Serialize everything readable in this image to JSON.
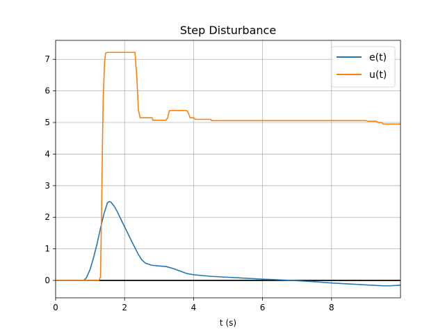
{
  "chart_data": {
    "type": "line",
    "title": "Step Disturbance",
    "xlabel": "t (s)",
    "ylabel": "",
    "xlim": [
      0,
      10
    ],
    "ylim": [
      -0.55,
      7.6
    ],
    "xticks": [
      0,
      2,
      4,
      6,
      8
    ],
    "yticks": [
      0,
      1,
      2,
      3,
      4,
      5,
      6,
      7
    ],
    "grid": true,
    "legend_position": "top-right",
    "zero_line": {
      "y": 0,
      "color": "#000000"
    },
    "series": [
      {
        "name": "e(t)",
        "color": "#1f77b4",
        "x": [
          0,
          0.8,
          0.85,
          0.9,
          1.0,
          1.1,
          1.2,
          1.3,
          1.4,
          1.5,
          1.55,
          1.6,
          1.7,
          1.8,
          1.9,
          2.0,
          2.2,
          2.4,
          2.5,
          2.6,
          2.7,
          2.8,
          3.0,
          3.2,
          3.4,
          3.6,
          3.8,
          4.0,
          4.5,
          5.0,
          5.5,
          6.0,
          6.5,
          7.0,
          7.5,
          8.0,
          8.5,
          9.0,
          9.5,
          9.7,
          10.0
        ],
        "y": [
          0,
          0,
          0.03,
          0.1,
          0.35,
          0.72,
          1.15,
          1.65,
          2.1,
          2.45,
          2.5,
          2.48,
          2.35,
          2.15,
          1.92,
          1.7,
          1.25,
          0.82,
          0.65,
          0.55,
          0.51,
          0.48,
          0.46,
          0.44,
          0.38,
          0.3,
          0.22,
          0.18,
          0.13,
          0.1,
          0.07,
          0.04,
          0.02,
          -0.01,
          -0.04,
          -0.08,
          -0.11,
          -0.14,
          -0.17,
          -0.17,
          -0.15
        ]
      },
      {
        "name": "u(t)",
        "color": "#ff7f0e",
        "x": [
          0,
          1.25,
          1.3,
          1.33,
          1.36,
          1.38,
          1.42,
          1.45,
          1.5,
          2.3,
          2.35,
          2.4,
          2.45,
          2.5,
          2.8,
          2.82,
          3.2,
          3.25,
          3.3,
          3.8,
          3.85,
          3.9,
          4.0,
          4.05,
          4.5,
          4.52,
          9.0,
          9.05,
          9.3,
          9.35,
          9.45,
          9.5,
          10.0
        ],
        "y": [
          0,
          0,
          0.1,
          2.0,
          4.5,
          5.8,
          6.9,
          7.2,
          7.22,
          7.22,
          6.5,
          5.4,
          5.15,
          5.15,
          5.15,
          5.07,
          5.07,
          5.15,
          5.38,
          5.38,
          5.3,
          5.15,
          5.15,
          5.1,
          5.1,
          5.06,
          5.06,
          5.04,
          5.04,
          5.0,
          5.0,
          4.95,
          4.95
        ]
      }
    ]
  }
}
